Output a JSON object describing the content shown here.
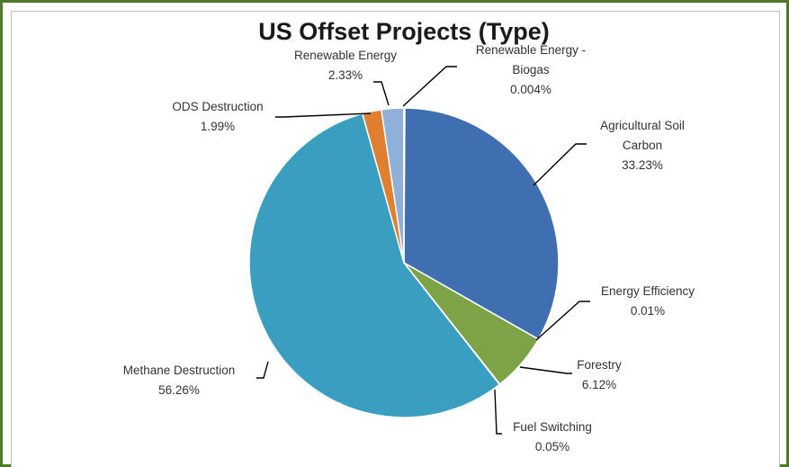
{
  "chart_data": {
    "type": "pie",
    "title": "US Offset Projects (Type)",
    "slices": [
      {
        "name": "Agricultural Soil Carbon",
        "value": 33.23,
        "value_label": "33.23%",
        "label_lines": [
          "Agricultural Soil",
          "Carbon"
        ],
        "color": "#3f6fb0"
      },
      {
        "name": "Energy Efficiency",
        "value": 0.01,
        "value_label": "0.01%",
        "label_lines": [
          "Energy Efficiency"
        ],
        "color": "#c0504d"
      },
      {
        "name": "Forestry",
        "value": 6.12,
        "value_label": "6.12%",
        "label_lines": [
          "Forestry"
        ],
        "color": "#7ea346"
      },
      {
        "name": "Fuel Switching",
        "value": 0.05,
        "value_label": "0.05%",
        "label_lines": [
          "Fuel Switching"
        ],
        "color": "#6a4a8c"
      },
      {
        "name": "Methane Destruction",
        "value": 56.26,
        "value_label": "56.26%",
        "label_lines": [
          "Methane Destruction"
        ],
        "color": "#3a9ec0"
      },
      {
        "name": "ODS Destruction",
        "value": 1.99,
        "value_label": "1.99%",
        "label_lines": [
          "ODS Destruction"
        ],
        "color": "#e07f30"
      },
      {
        "name": "Renewable Energy",
        "value": 2.33,
        "value_label": "2.33%",
        "label_lines": [
          "Renewable Energy"
        ],
        "color": "#8fb0d8"
      },
      {
        "name": "Renewable Energy - Biogas",
        "value": 0.004,
        "value_label": "0.004%",
        "label_lines": [
          "Renewable Energy -",
          "Biogas"
        ],
        "color": "#3f6fb0"
      }
    ],
    "start_angle_deg": 0,
    "direction": "clockwise",
    "legend": "none"
  }
}
